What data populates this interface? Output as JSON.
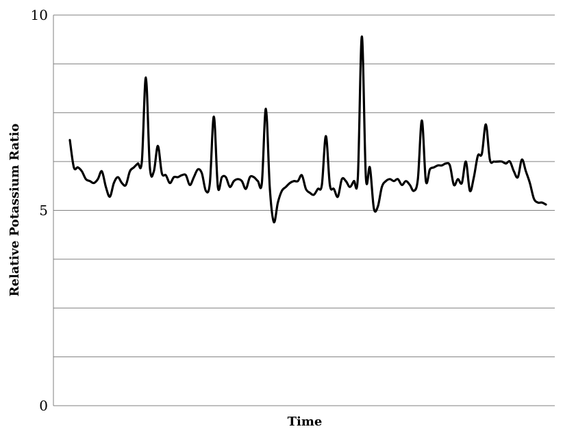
{
  "chart_data": {
    "type": "line",
    "title": "",
    "xlabel": "Time",
    "ylabel": "Relative Potassium Ratio",
    "ylim": [
      0,
      10
    ],
    "y_ticks": [
      "0",
      "5",
      "10"
    ],
    "grid": true,
    "grid_lines_y": [
      0,
      1.25,
      2.5,
      3.75,
      5,
      6.25,
      7.5,
      8.75,
      10
    ],
    "line_color": "#000000",
    "grid_color": "#7f7f7f",
    "series": [
      {
        "values": [
          6.8,
          6.1,
          6.1,
          6.0,
          5.8,
          5.75,
          5.7,
          5.8,
          6.0,
          5.6,
          5.35,
          5.7,
          5.85,
          5.7,
          5.65,
          6.0,
          6.1,
          6.2,
          6.25,
          8.4,
          6.1,
          6.0,
          6.65,
          5.95,
          5.9,
          5.7,
          5.85,
          5.85,
          5.9,
          5.9,
          5.65,
          5.85,
          6.05,
          5.95,
          5.5,
          5.7,
          7.4,
          5.6,
          5.85,
          5.85,
          5.6,
          5.75,
          5.8,
          5.75,
          5.55,
          5.85,
          5.85,
          5.75,
          5.7,
          7.6,
          5.55,
          4.7,
          5.2,
          5.5,
          5.6,
          5.7,
          5.75,
          5.75,
          5.9,
          5.55,
          5.45,
          5.4,
          5.55,
          5.65,
          6.9,
          5.65,
          5.55,
          5.35,
          5.8,
          5.75,
          5.6,
          5.75,
          5.85,
          9.45,
          5.85,
          6.1,
          5.05,
          5.1,
          5.6,
          5.75,
          5.8,
          5.75,
          5.8,
          5.65,
          5.75,
          5.65,
          5.5,
          5.8,
          7.3,
          5.75,
          6.05,
          6.1,
          6.15,
          6.15,
          6.2,
          6.15,
          5.65,
          5.8,
          5.7,
          6.25,
          5.5,
          5.85,
          6.4,
          6.45,
          7.2,
          6.3,
          6.25,
          6.25,
          6.25,
          6.2,
          6.25,
          6.0,
          5.85,
          6.3,
          6.0,
          5.7,
          5.3,
          5.2,
          5.2,
          5.15
        ]
      }
    ]
  }
}
